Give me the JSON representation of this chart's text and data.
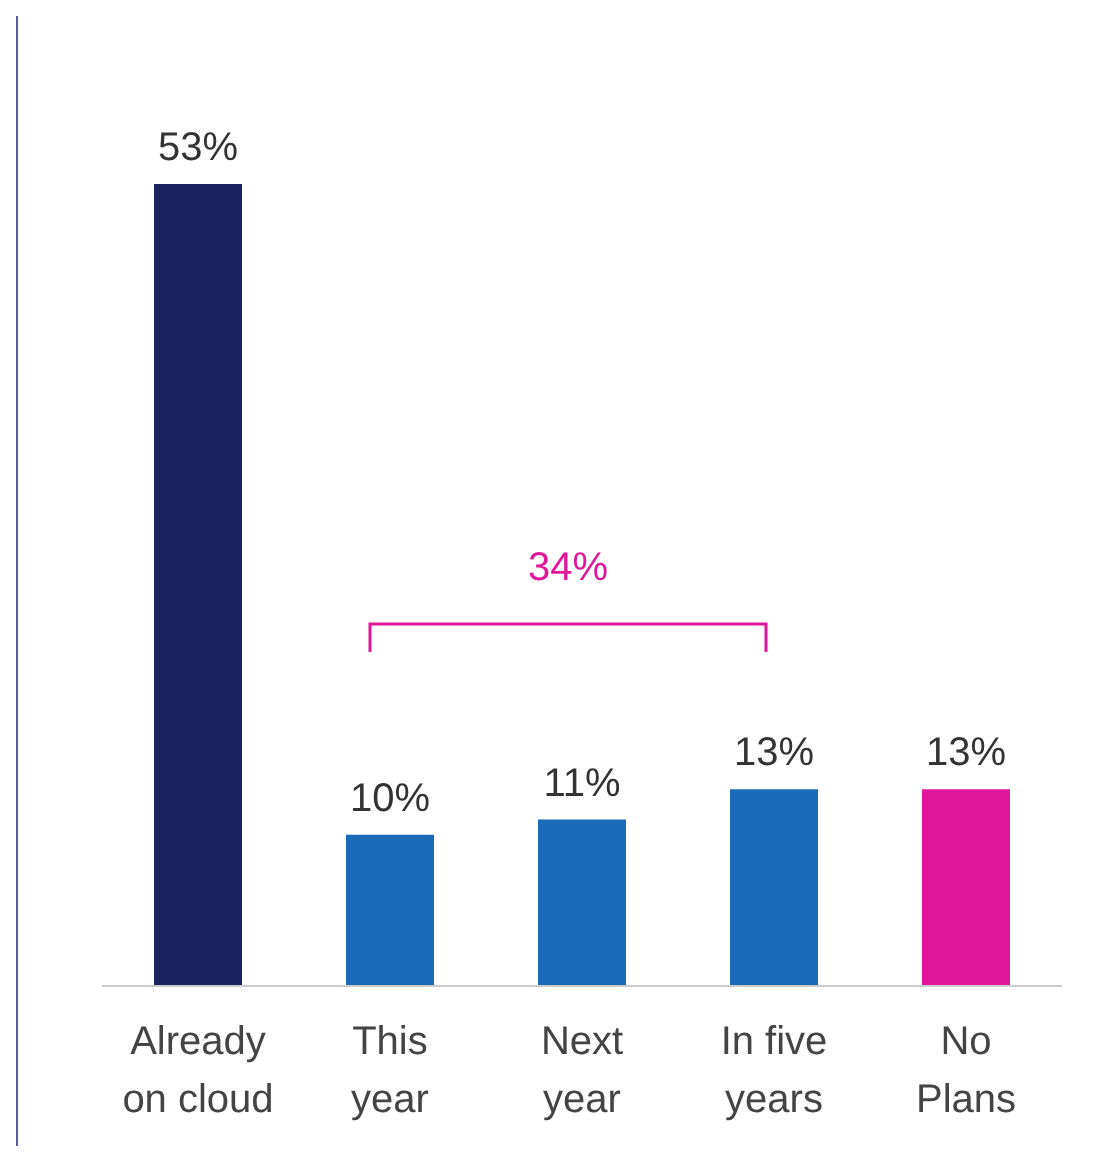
{
  "chart_data": {
    "type": "bar",
    "categories": [
      "Already\non cloud",
      "This\nyear",
      "Next\nyear",
      "In five\nyears",
      "No\nPlans"
    ],
    "values": [
      53,
      10,
      11,
      13,
      13
    ],
    "colors": [
      "#1a2260",
      "#1b6ab8",
      "#1b6ab8",
      "#1b6ab8",
      "#e0179a"
    ],
    "value_labels": [
      "53%",
      "10%",
      "11%",
      "13%",
      "13%"
    ],
    "annotations": [
      "34%"
    ],
    "grid": false,
    "legend": false
  }
}
